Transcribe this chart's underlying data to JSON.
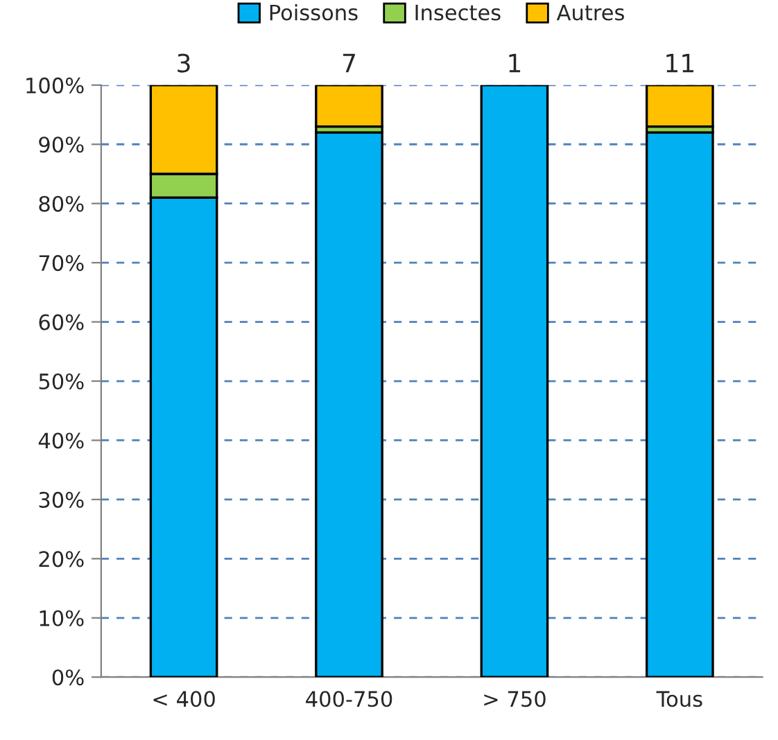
{
  "chart_data": {
    "type": "bar",
    "stacked": true,
    "categories": [
      "< 400",
      "400-750",
      "> 750",
      "Tous"
    ],
    "series": [
      {
        "name": "Poissons",
        "color": "#00b0f0",
        "values": [
          81,
          92,
          100,
          92
        ]
      },
      {
        "name": "Insectes",
        "color": "#92d050",
        "values": [
          4,
          1,
          0,
          1
        ]
      },
      {
        "name": "Autres",
        "color": "#ffc000",
        "values": [
          15,
          7,
          0,
          7
        ]
      }
    ],
    "ylim": [
      0,
      100
    ],
    "yticks": [
      {
        "value": 0,
        "label": "0%"
      },
      {
        "value": 10,
        "label": "10%"
      },
      {
        "value": 20,
        "label": "20%"
      },
      {
        "value": 30,
        "label": "30%"
      },
      {
        "value": 40,
        "label": "40%"
      },
      {
        "value": 50,
        "label": "50%"
      },
      {
        "value": 60,
        "label": "60%"
      },
      {
        "value": 70,
        "label": "70%"
      },
      {
        "value": 80,
        "label": "80%"
      },
      {
        "value": 90,
        "label": "90%"
      },
      {
        "value": 100,
        "label": "100%"
      }
    ],
    "annotations": [
      {
        "text": "3",
        "x": "< 400",
        "y": 100
      },
      {
        "text": "7",
        "x": "400-750",
        "y": 100
      },
      {
        "text": "1",
        "x": "> 750",
        "y": 100
      },
      {
        "text": "11",
        "x": "Tous",
        "y": 100
      }
    ],
    "grid": "y",
    "line_style": "dashed",
    "legend": "top"
  }
}
